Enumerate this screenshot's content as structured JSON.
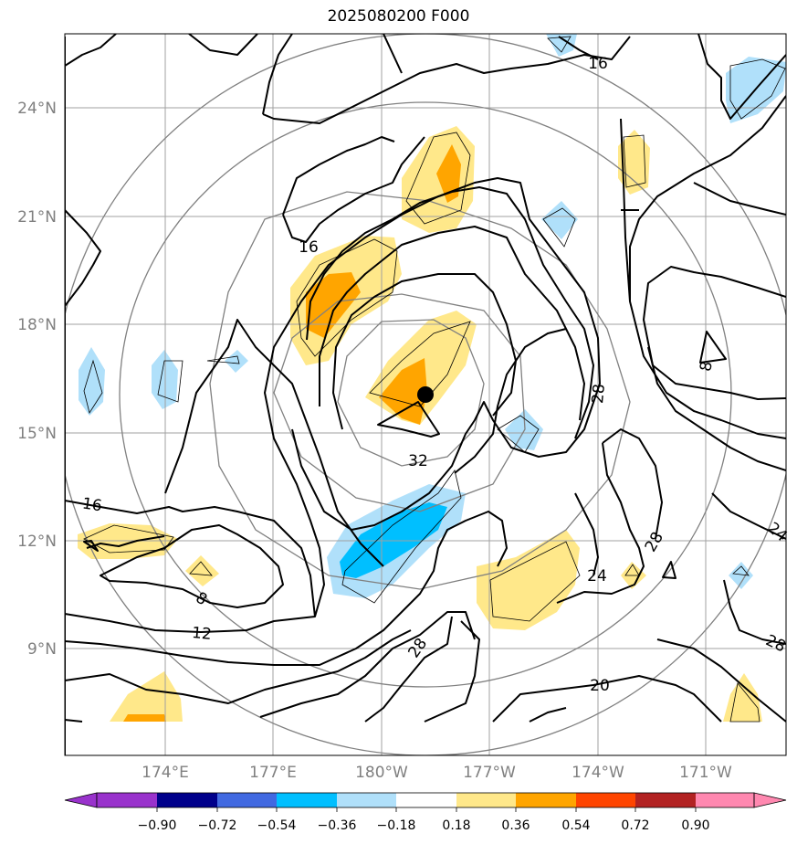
{
  "title": "2025080200 F000",
  "map": {
    "lat_ticks": [
      "24°N",
      "21°N",
      "18°N",
      "15°N",
      "12°N",
      "9°N"
    ],
    "lon_ticks": [
      "174°E",
      "177°E",
      "180°W",
      "177°W",
      "174°W",
      "171°W"
    ],
    "contour_labels": [
      "16",
      "16",
      "8",
      "28",
      "32",
      "16",
      "12",
      "8",
      "28",
      "28",
      "24",
      "24",
      "20",
      "28"
    ],
    "storm_center_marker": "filled-black-circle",
    "colors": {
      "gridline": "#a0a0a0",
      "range_rings": "#808080",
      "contours": "#000000",
      "fill_018_036": "#ffe88a",
      "fill_036_054": "#ffa500",
      "fill_neg_018_036": "#b0e0fa",
      "fill_neg_036_054": "#00bfff"
    }
  },
  "colorbar": {
    "ticks": [
      "−0.90",
      "−0.72",
      "−0.54",
      "−0.36",
      "−0.18",
      "0.18",
      "0.36",
      "0.54",
      "0.72",
      "0.90"
    ],
    "colors": [
      "#9932cc",
      "#00008b",
      "#4169e1",
      "#00bfff",
      "#b0e0fa",
      "#ffffff",
      "#ffe88a",
      "#ffa500",
      "#ff4500",
      "#b22222",
      "#ff88b0"
    ]
  }
}
